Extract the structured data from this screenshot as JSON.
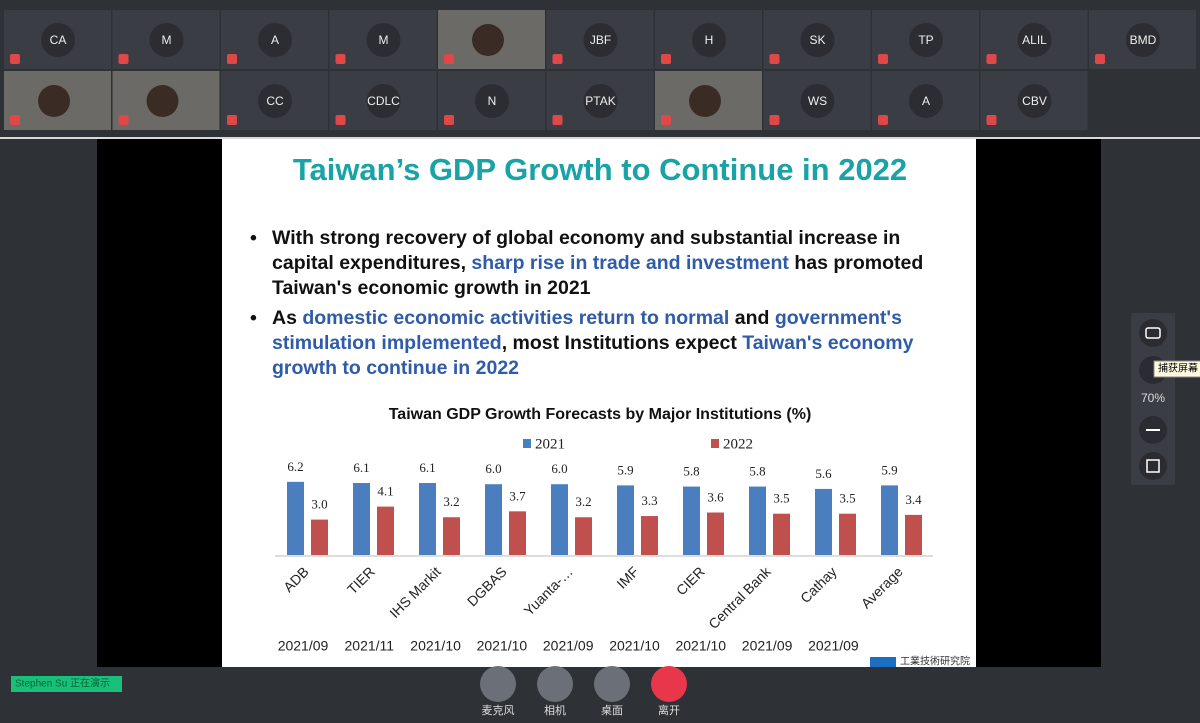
{
  "participants": [
    [
      "CA",
      "M",
      "A",
      "M",
      null,
      "JBF",
      "H",
      "SK",
      "TP",
      "ALIL",
      "BMD"
    ],
    [
      null,
      null,
      "CC",
      "CDLC",
      "N",
      "PTAK",
      null,
      "WS",
      "A",
      "CBV"
    ]
  ],
  "slide": {
    "title": "Taiwan’s GDP Growth to Continue in 2022",
    "bullets": [
      [
        {
          "text": "With strong recovery of global economy and substantial increase in capital expenditures, ",
          "highlight": false
        },
        {
          "text": "sharp rise in trade and investment",
          "highlight": true
        },
        {
          "text": " has promoted Taiwan's economic growth in 2021",
          "highlight": false
        }
      ],
      [
        {
          "text": "As ",
          "highlight": false
        },
        {
          "text": "domestic economic activities return to normal",
          "highlight": true
        },
        {
          "text": " and ",
          "highlight": false
        },
        {
          "text": "government's stimulation implemented",
          "highlight": true
        },
        {
          "text": ", most Institutions expect ",
          "highlight": false
        },
        {
          "text": "Taiwan's economy growth to continue in 2022",
          "highlight": true
        }
      ]
    ],
    "dates": [
      "2021/09",
      "2021/11",
      "2021/10",
      "2021/10",
      "2021/09",
      "2021/10",
      "2021/10",
      "2021/09",
      "2021/09"
    ],
    "logo": "工業技術研究院"
  },
  "chart_data": {
    "type": "bar",
    "title": "Taiwan GDP Growth Forecasts by Major Institutions (%)",
    "categories": [
      "ADB",
      "TIER",
      "IHS Markit",
      "DGBAS",
      "Yuanta-…",
      "IMF",
      "CIER",
      "Central Bank",
      "Cathay",
      "Average"
    ],
    "series": [
      {
        "name": "2021",
        "color": "#4a7ebf",
        "values": [
          6.2,
          6.1,
          6.1,
          6.0,
          6.0,
          5.9,
          5.8,
          5.8,
          5.6,
          5.9
        ],
        "value_labels": [
          "6.2",
          "6.1",
          "6.1",
          "6.0",
          "6.0",
          "5.9",
          "5.8",
          "5.8",
          "5.6",
          "5.9"
        ]
      },
      {
        "name": "2022",
        "color": "#c0504d",
        "values": [
          3.0,
          4.1,
          3.2,
          3.7,
          3.2,
          3.3,
          3.6,
          3.5,
          3.5,
          3.4
        ],
        "value_labels": [
          "3.0",
          "4.1",
          "3.2",
          "3.7",
          "3.2",
          "3.3",
          "3.6",
          "3.5",
          "3.5",
          "3.4"
        ]
      }
    ]
  },
  "side": {
    "tooltip": "捕获屏幕",
    "zoom": "70%"
  },
  "status": "Stephen  Su 正在演示",
  "controls": [
    "麦克风",
    "相机",
    "桌面",
    "离开"
  ]
}
